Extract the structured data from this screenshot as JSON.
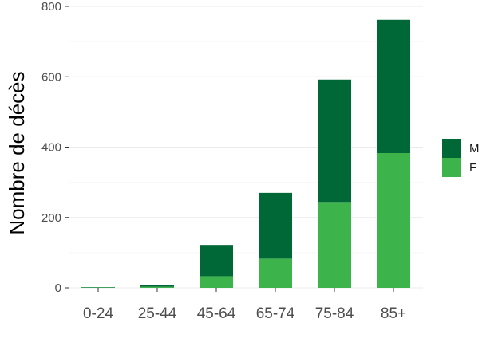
{
  "chart_data": {
    "type": "bar",
    "stacked": true,
    "categories": [
      "0-24",
      "25-44",
      "45-64",
      "65-74",
      "75-84",
      "85+"
    ],
    "series": [
      {
        "name": "F",
        "color": "#3cb44b",
        "values": [
          1,
          3,
          33,
          83,
          244,
          383
        ]
      },
      {
        "name": "M",
        "color": "#006837",
        "values": [
          1,
          5,
          89,
          187,
          348,
          379
        ]
      }
    ],
    "totals": [
      2,
      8,
      122,
      270,
      592,
      762
    ],
    "xlabel": "",
    "ylabel": "Nombre de décès",
    "ylim": [
      0,
      800
    ],
    "yticks": [
      0,
      200,
      400,
      600,
      800
    ],
    "grid": true,
    "legend": {
      "position": "right",
      "order": [
        "M",
        "F"
      ]
    }
  }
}
